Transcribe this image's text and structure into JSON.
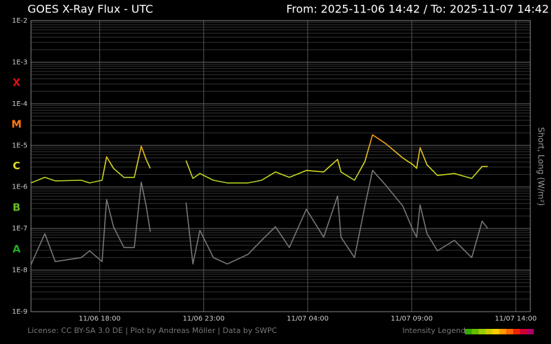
{
  "chart_data": {
    "type": "line",
    "title": "GOES X-Ray Flux - UTC",
    "subtitle": "From: 2025-11-06 14:42  /  To: 2025-11-07 14:42",
    "y_label": "Short, Long (W/m²)",
    "footer": "License: CC BY-SA 3.0 DE | Plot by Andreas Möller | Data by SWPC",
    "intensity_legend": "Intensity Legend",
    "intensity_colors": [
      "#33aa00",
      "#66bb00",
      "#99cc00",
      "#cccc00",
      "#ffcc00",
      "#ff9900",
      "#ff6600",
      "#ee2200",
      "#cc0033",
      "#aa0066"
    ],
    "log_y": true,
    "grid": true,
    "flare_classes": [
      {
        "label": "A",
        "value": 1e-08,
        "color": "#22aa22"
      },
      {
        "label": "B",
        "value": 1e-07,
        "color": "#66bb22"
      },
      {
        "label": "C",
        "value": 1e-06,
        "color": "#dddd22"
      },
      {
        "label": "M",
        "value": 1e-05,
        "color": "#ff7711"
      },
      {
        "label": "X",
        "value": 0.0001,
        "color": "#dd1111"
      }
    ],
    "xlim": [
      "11/06 14:42",
      "11/07 14:42"
    ],
    "xticks": [
      "11/06 18:00",
      "11/06 23:00",
      "11/07 04:00",
      "11/07 09:00",
      "11/07 14:00"
    ],
    "ylim": [
      1e-09,
      0.01
    ],
    "yticks": [
      {
        "value": 1e-09,
        "label": "1E-9"
      },
      {
        "value": 1e-08,
        "label": "1E-8"
      },
      {
        "value": 1e-07,
        "label": "1E-7"
      },
      {
        "value": 1e-06,
        "label": "1E-6"
      },
      {
        "value": 1e-05,
        "label": "1E-5"
      },
      {
        "value": 0.0001,
        "label": "1E-4"
      },
      {
        "value": 0.001,
        "label": "1E-3"
      },
      {
        "value": 0.01,
        "label": "1E-2"
      }
    ],
    "x": [
      "11/06 14:42",
      "11/06 15:22",
      "11/06 15:52",
      "11/06 17:07",
      "11/06 17:31",
      "11/06 18:07",
      "11/06 18:20",
      "11/06 18:40",
      "11/06 19:10",
      "11/06 19:40",
      "11/06 20:00",
      "11/06 20:14",
      "11/06 20:26",
      "11/06 21:00",
      "11/06 22:09",
      "11/06 22:29",
      "11/06 22:49",
      "11/06 23:28",
      "11/07 00:08",
      "11/07 01:08",
      "11/07 01:47",
      "11/07 02:27",
      "11/07 03:07",
      "11/07 03:56",
      "11/07 04:46",
      "11/07 05:26",
      "11/07 05:36",
      "11/07 06:15",
      "11/07 06:45",
      "11/07 07:07",
      "11/07 07:45",
      "11/07 08:34",
      "11/07 09:04",
      "11/07 09:14",
      "11/07 09:24",
      "11/07 09:44",
      "11/07 10:14",
      "11/07 11:03",
      "11/07 11:53",
      "11/07 12:23",
      "11/07 12:39"
    ],
    "series": [
      {
        "name": "Long",
        "color_by_class": true,
        "values": [
          1.25e-06,
          1.7e-06,
          1.4e-06,
          1.45e-06,
          1.25e-06,
          1.45e-06,
          5.3e-06,
          2.8e-06,
          1.7e-06,
          1.7e-06,
          9.5e-06,
          4.6e-06,
          2.8e-06,
          null,
          4.3e-06,
          1.6e-06,
          2.1e-06,
          1.45e-06,
          1.25e-06,
          1.25e-06,
          1.45e-06,
          2.3e-06,
          1.7e-06,
          2.5e-06,
          2.3e-06,
          4.6e-06,
          2.3e-06,
          1.45e-06,
          4.1e-06,
          1.8e-05,
          1.1e-05,
          5e-06,
          3.4e-06,
          2.8e-06,
          8.8e-06,
          3.4e-06,
          1.9e-06,
          2.1e-06,
          1.6e-06,
          3.1e-06,
          3.1e-06
        ]
      },
      {
        "name": "Short",
        "color": "#777777",
        "values": [
          1.36e-08,
          7.5e-08,
          1.6e-08,
          2e-08,
          2.9e-08,
          1.6e-08,
          5e-07,
          1.1e-07,
          3.5e-08,
          3.5e-08,
          1.3e-06,
          3.5e-07,
          8.4e-08,
          null,
          4.2e-07,
          1.4e-08,
          9e-08,
          2e-08,
          1.4e-08,
          2.4e-08,
          5.2e-08,
          1.1e-07,
          3.5e-08,
          2.9e-07,
          6.2e-08,
          6.1e-07,
          6.2e-08,
          2e-08,
          3.5e-07,
          2.5e-06,
          1.1e-06,
          3.5e-07,
          9e-08,
          6.2e-08,
          3.7e-07,
          7.5e-08,
          2.9e-08,
          5.2e-08,
          2e-08,
          1.5e-07,
          1e-07
        ]
      }
    ]
  }
}
